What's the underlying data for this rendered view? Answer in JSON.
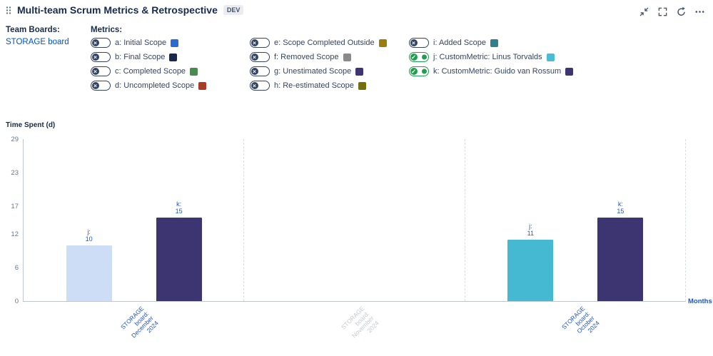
{
  "header": {
    "title": "Multi-team Scrum Metrics & Retrospective",
    "badge": "DEV"
  },
  "team_boards": {
    "label": "Team Boards:",
    "board": "STORAGE board"
  },
  "metrics": {
    "label": "Metrics:",
    "items": [
      {
        "key": "a",
        "label": "a: Initial Scope",
        "color": "#2e6bd0",
        "enabled": false
      },
      {
        "key": "b",
        "label": "b: Final Scope",
        "color": "#17294d",
        "enabled": false
      },
      {
        "key": "c",
        "label": "c: Completed Scope",
        "color": "#4a8a50",
        "enabled": false
      },
      {
        "key": "d",
        "label": "d: Uncompleted Scope",
        "color": "#a93a26",
        "enabled": false
      },
      {
        "key": "e",
        "label": "e: Scope Completed Outside",
        "color": "#9b7d0e",
        "enabled": false
      },
      {
        "key": "f",
        "label": "f: Removed Scope",
        "color": "#8a8a8a",
        "enabled": false
      },
      {
        "key": "g",
        "label": "g: Unestimated Scope",
        "color": "#3d3472",
        "enabled": false
      },
      {
        "key": "h",
        "label": "h: Re-estimated Scope",
        "color": "#736d10",
        "enabled": false
      },
      {
        "key": "i",
        "label": "i: Added Scope",
        "color": "#2f7f8f",
        "enabled": false
      },
      {
        "key": "j",
        "label": "j: CustomMetric: Linus Torvalds",
        "color": "#49bcd8",
        "enabled": true
      },
      {
        "key": "k",
        "label": "k: CustomMetric: Guido van Rossum",
        "color": "#3d3472",
        "enabled": true
      }
    ]
  },
  "chart_data": {
    "type": "bar",
    "title": "",
    "ylabel": "Time Spent (d)",
    "xlabel": "Months",
    "ylim": [
      0,
      29
    ],
    "yticks": [
      0,
      6,
      12,
      17,
      23,
      29
    ],
    "grid": "vertical-dashed-separators",
    "legend_position": "top (toggle list)",
    "categories": [
      "STORAGE board: December 2024",
      "STORAGE board: November 2024",
      "STORAGE board: October 2024"
    ],
    "category_active": [
      true,
      false,
      true
    ],
    "series": [
      {
        "name": "j",
        "label": "CustomMetric: Linus Torvalds",
        "values": [
          10,
          null,
          11
        ],
        "colors": [
          "#cdddf6",
          null,
          "#45b8d2"
        ]
      },
      {
        "name": "k",
        "label": "CustomMetric: Guido van Rossum",
        "values": [
          15,
          null,
          15
        ],
        "colors": [
          "#3d3472",
          null,
          "#3d3472"
        ]
      }
    ],
    "colors": {
      "axis": "#c1c7d0",
      "tick_text": "#6b778c",
      "value_label": "#2155c8",
      "category_active": "#2155c8",
      "category_inactive": "#c4c9d1"
    }
  }
}
